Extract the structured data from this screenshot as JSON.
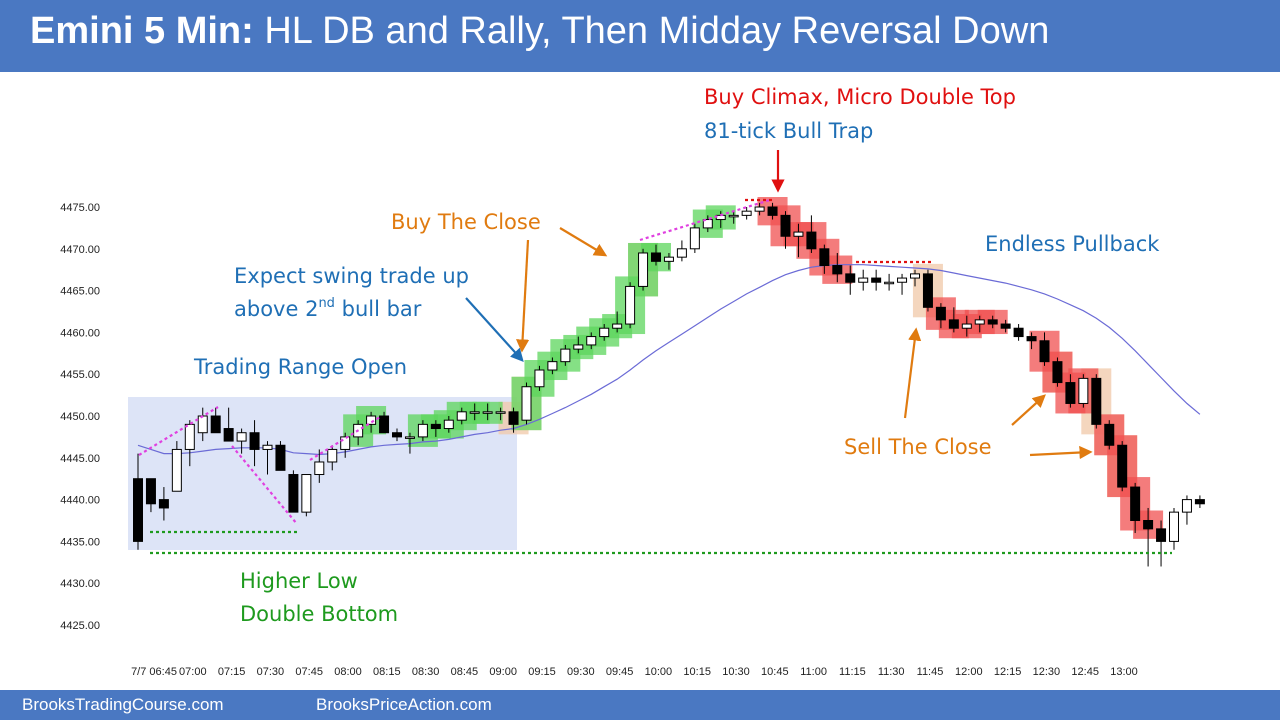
{
  "header": {
    "title_bold": "Emini 5 Min:",
    "title_rest": "HL DB and Rally, Then Midday Reversal Down"
  },
  "footer": {
    "left": "BrooksTradingCourse.com",
    "right": "BrooksPriceAction.com"
  },
  "colors": {
    "header_bg": "#4a78c2",
    "blue_text": "#1f6fb5",
    "orange_text": "#e07b10",
    "red_text": "#e01010",
    "green_text": "#1e9a1e",
    "ema": "#6b6bd6",
    "bull_box": "#5cd65c",
    "bear_box": "#f05050",
    "tan_box": "#f0c8a8"
  },
  "chart_data": {
    "type": "candlestick",
    "ylim": [
      4423,
      4478
    ],
    "yticks": [
      "4475.00",
      "4470.00",
      "4465.00",
      "4460.00",
      "4455.00",
      "4450.00",
      "4445.00",
      "4440.00",
      "4435.00",
      "4430.00",
      "4425.00"
    ],
    "xticks": [
      "7/7 06:45",
      "07:00",
      "07:15",
      "07:30",
      "07:45",
      "08:00",
      "08:15",
      "08:30",
      "08:45",
      "09:00",
      "09:15",
      "09:30",
      "09:45",
      "10:00",
      "10:15",
      "10:30",
      "10:45",
      "11:00",
      "11:15",
      "11:30",
      "11:45",
      "12:00",
      "12:15",
      "12:30",
      "12:45",
      "13:00"
    ],
    "candles": [
      [
        4442.5,
        4445.5,
        4434,
        4435
      ],
      [
        4442.5,
        4442.5,
        4438.5,
        4439.5
      ],
      [
        4440,
        4441.5,
        4437.5,
        4439
      ],
      [
        4441,
        4447,
        4441,
        4446
      ],
      [
        4446,
        4449.5,
        4444,
        4449
      ],
      [
        4448,
        4451,
        4447,
        4450
      ],
      [
        4450,
        4451,
        4448,
        4448
      ],
      [
        4448.5,
        4451,
        4447,
        4447
      ],
      [
        4447,
        4448.5,
        4445.5,
        4448
      ],
      [
        4448,
        4449.5,
        4444,
        4446
      ],
      [
        4446,
        4447,
        4443,
        4446.5
      ],
      [
        4446.5,
        4447,
        4443.5,
        4443.5
      ],
      [
        4443,
        4443.5,
        4439,
        4438.5
      ],
      [
        4438.5,
        4443,
        4438,
        4443
      ],
      [
        4443,
        4446,
        4442,
        4444.5
      ],
      [
        4444.5,
        4446.5,
        4443.5,
        4446
      ],
      [
        4446,
        4448,
        4445,
        4447.5
      ],
      [
        4447.5,
        4449.5,
        4446.5,
        4449
      ],
      [
        4449,
        4450.5,
        4448,
        4450
      ],
      [
        4450,
        4450.5,
        4448,
        4448
      ],
      [
        4448,
        4448.5,
        4447,
        4447.5
      ],
      [
        4447.5,
        4448,
        4445.5,
        4447.5
      ],
      [
        4447.5,
        4449.5,
        4447,
        4449
      ],
      [
        4449,
        4449.5,
        4447.5,
        4448.5
      ],
      [
        4448.5,
        4450,
        4448,
        4449.5
      ],
      [
        4449.5,
        4451,
        4449,
        4450.5
      ],
      [
        4450.5,
        4451.5,
        4449.5,
        4450.5
      ],
      [
        4450.5,
        4451.5,
        4449.5,
        4450.5
      ],
      [
        4450.5,
        4451,
        4449.5,
        4450.5
      ],
      [
        4450.5,
        4451,
        4448,
        4449
      ],
      [
        4449.5,
        4454,
        4449,
        4453.5
      ],
      [
        4453.5,
        4456,
        4453,
        4455.5
      ],
      [
        4455.5,
        4457,
        4455,
        4456.5
      ],
      [
        4456.5,
        4458.5,
        4456,
        4458
      ],
      [
        4458,
        4459.5,
        4457.5,
        4458.5
      ],
      [
        4458.5,
        4460,
        4458,
        4459.5
      ],
      [
        4459.5,
        4461,
        4459,
        4460.5
      ],
      [
        4460.5,
        4462.5,
        4460,
        4461
      ],
      [
        4461,
        4466,
        4460.5,
        4465.5
      ],
      [
        4465.5,
        4470,
        4465,
        4469.5
      ],
      [
        4469.5,
        4470.5,
        4468,
        4468.5
      ],
      [
        4468.5,
        4469.5,
        4467.5,
        4469
      ],
      [
        4469,
        4471,
        4468.5,
        4470
      ],
      [
        4470,
        4473,
        4469.5,
        4472.5
      ],
      [
        4472.5,
        4474,
        4472,
        4473.5
      ],
      [
        4473.5,
        4474.5,
        4472.5,
        4474
      ],
      [
        4474,
        4474.5,
        4473,
        4474
      ],
      [
        4474,
        4475,
        4473.5,
        4474.5
      ],
      [
        4474.5,
        4475.5,
        4474,
        4475
      ],
      [
        4475,
        4475.5,
        4473.5,
        4474
      ],
      [
        4474,
        4474.5,
        4470,
        4471.5
      ],
      [
        4471.5,
        4473,
        4469,
        4472
      ],
      [
        4472,
        4474,
        4469.5,
        4470
      ],
      [
        4470,
        4470.5,
        4467,
        4468
      ],
      [
        4468,
        4469.5,
        4466,
        4467
      ],
      [
        4467,
        4468,
        4464.5,
        4466
      ],
      [
        4466,
        4467.5,
        4465,
        4466.5
      ],
      [
        4466.5,
        4467.5,
        4465,
        4466
      ],
      [
        4466,
        4467,
        4465,
        4466
      ],
      [
        4466,
        4467,
        4464.5,
        4466.5
      ],
      [
        4466.5,
        4467.5,
        4465.5,
        4467
      ],
      [
        4467,
        4467.5,
        4462.5,
        4463
      ],
      [
        4463,
        4463.5,
        4460.5,
        4461.5
      ],
      [
        4461.5,
        4463,
        4460,
        4460.5
      ],
      [
        4460.5,
        4462,
        4459.5,
        4461
      ],
      [
        4461,
        4462,
        4460,
        4461.5
      ],
      [
        4461.5,
        4462,
        4460.5,
        4461
      ],
      [
        4461,
        4461.5,
        4460,
        4460.5
      ],
      [
        4460.5,
        4461,
        4459,
        4459.5
      ],
      [
        4459.5,
        4460,
        4458,
        4459
      ],
      [
        4459,
        4460,
        4456,
        4456.5
      ],
      [
        4456.5,
        4457,
        4453.5,
        4454
      ],
      [
        4454,
        4455,
        4451,
        4451.5
      ],
      [
        4451.5,
        4455,
        4451,
        4454.5
      ],
      [
        4454.5,
        4455,
        4448.5,
        4449
      ],
      [
        4449,
        4449.5,
        4446,
        4446.5
      ],
      [
        4446.5,
        4447,
        4441,
        4441.5
      ],
      [
        4441.5,
        4442,
        4436,
        4437.5
      ],
      [
        4437.5,
        4439,
        4432,
        4436.5
      ],
      [
        4436.5,
        4437.5,
        4432,
        4435
      ],
      [
        4435,
        4439,
        4434,
        4438.5
      ],
      [
        4438.5,
        4440.5,
        4437,
        4440
      ],
      [
        4440,
        4440.5,
        4439,
        4439.5
      ]
    ],
    "ema": [
      4446.5,
      4446,
      4445.5,
      4445.5,
      4445.6,
      4445.8,
      4446,
      4446.1,
      4446.2,
      4446.2,
      4446.2,
      4446,
      4445.6,
      4445.5,
      4445.4,
      4445.5,
      4445.7,
      4446,
      4446.3,
      4446.5,
      4446.6,
      4446.7,
      4446.9,
      4447,
      4447.2,
      4447.5,
      4447.8,
      4448,
      4448.3,
      4448.5,
      4449,
      4449.6,
      4450.3,
      4451,
      4451.8,
      4452.6,
      4453.5,
      4454.4,
      4455.5,
      4456.7,
      4457.8,
      4458.8,
      4459.8,
      4460.8,
      4461.8,
      4462.8,
      4463.7,
      4464.6,
      4465.4,
      4466.2,
      4466.9,
      4467.4,
      4467.8,
      4468,
      4468.1,
      4468.1,
      4468.1,
      4468,
      4467.9,
      4467.8,
      4467.7,
      4467.6,
      4467.4,
      4467.1,
      4466.8,
      4466.5,
      4466.2,
      4465.9,
      4465.5,
      4465.1,
      4464.6,
      4464,
      4463.3,
      4462.6,
      4461.7,
      4460.6,
      4459.3,
      4457.8,
      4456.2,
      4454.6,
      4453,
      4451.5,
      4450.2
    ],
    "highlights": {
      "green": [
        17,
        18,
        22,
        23,
        24,
        25,
        26,
        27,
        30,
        31,
        32,
        33,
        34,
        35,
        36,
        37,
        38,
        39,
        40,
        44,
        45
      ],
      "red": [
        49,
        50,
        51,
        52,
        53,
        54,
        62,
        63,
        64,
        65,
        66,
        70,
        71,
        72,
        73,
        75,
        76,
        77,
        78
      ],
      "tan": [
        29,
        30,
        39,
        61,
        71,
        74,
        75,
        76
      ]
    },
    "annotations": {
      "buy_climax": "Buy Climax, Micro Double Top",
      "bull_trap": "81-tick Bull Trap",
      "buy_close": "Buy The Close",
      "expect_line1": "Expect swing trade up",
      "expect_line2_pre": "above 2",
      "expect_sup": "nd",
      "expect_line2_post": " bull bar",
      "trading_range": "Trading Range Open",
      "endless_pullback": "Endless Pullback",
      "sell_close": "Sell The Close",
      "higher_low": "Higher Low",
      "double_bottom": "Double Bottom"
    }
  }
}
